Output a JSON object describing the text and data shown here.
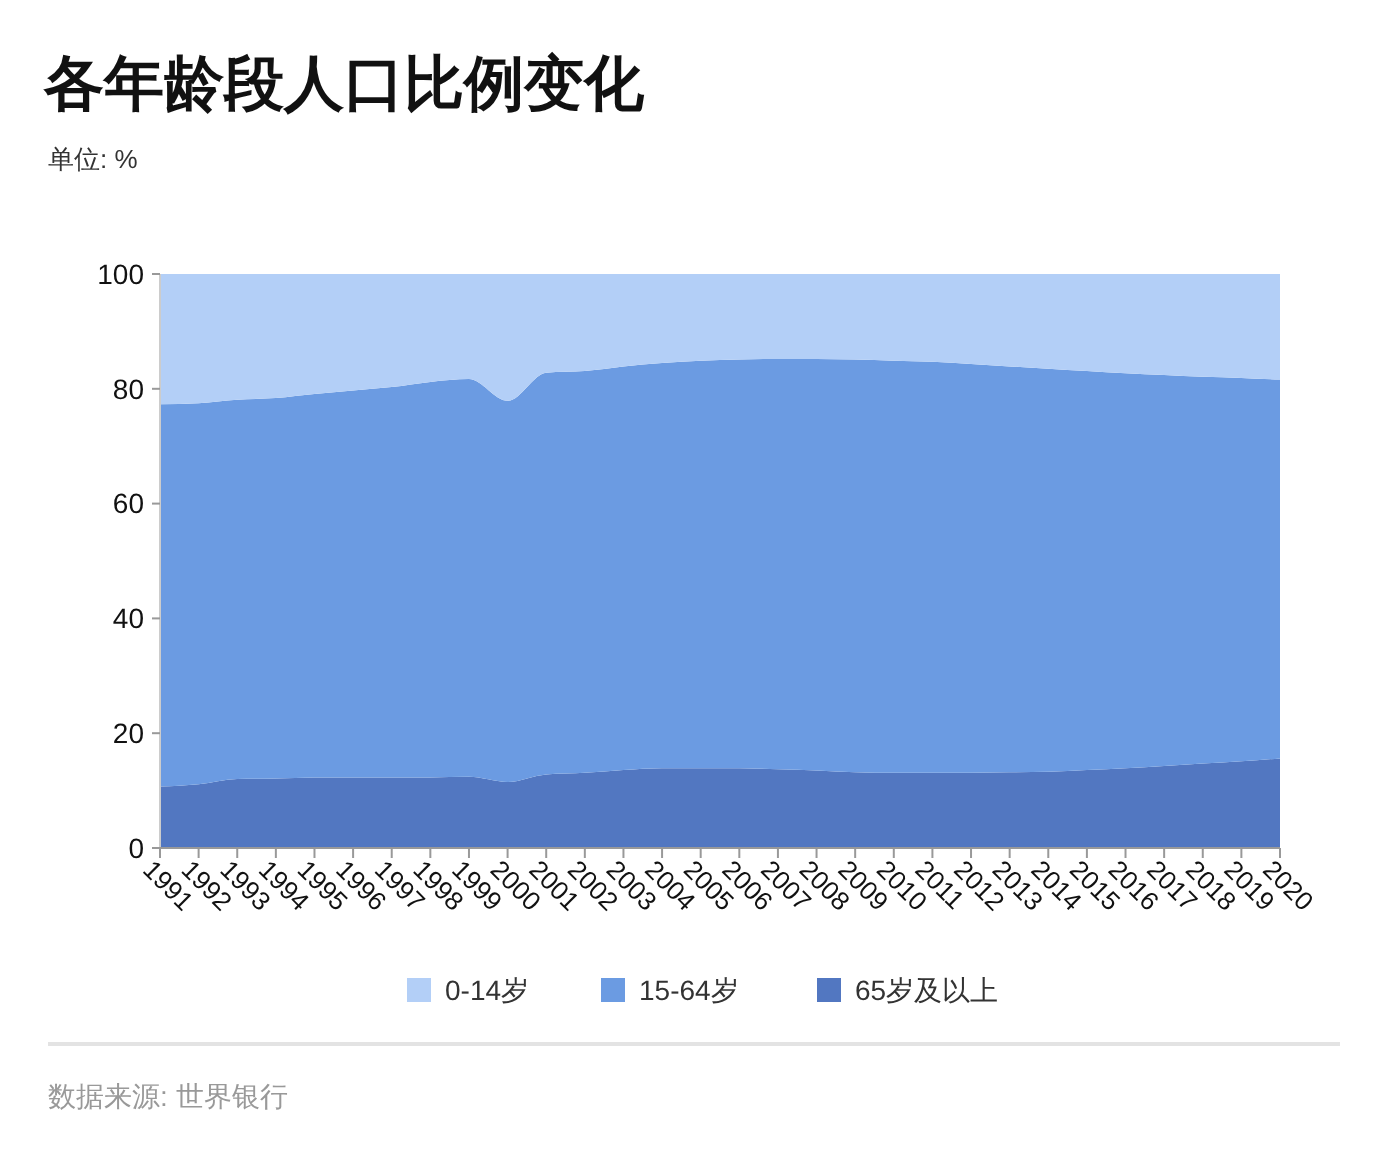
{
  "chart_data": {
    "type": "area",
    "title": "各年龄段人口比例变化",
    "subtitle": "单位: %",
    "annotations": [
      "数据来源: 世界银行"
    ],
    "categories": [
      "1991",
      "1992",
      "1993",
      "1994",
      "1995",
      "1996",
      "1997",
      "1998",
      "1999",
      "2000",
      "2001",
      "2002",
      "2003",
      "2004",
      "2005",
      "2006",
      "2007",
      "2008",
      "2009",
      "2010",
      "2011",
      "2012",
      "2013",
      "2014",
      "2015",
      "2016",
      "2017",
      "2018",
      "2019",
      "2020"
    ],
    "stacked": true,
    "ylim": [
      0,
      100
    ],
    "yticks": [
      0,
      20,
      40,
      60,
      80,
      100
    ],
    "grid": false,
    "legend": "bottom",
    "series": [
      {
        "name": "65岁及以上",
        "color": "#5277c1",
        "values": [
          10.7,
          11.1,
          12.0,
          12.1,
          12.3,
          12.3,
          12.3,
          12.3,
          12.4,
          11.5,
          12.8,
          13.1,
          13.6,
          13.9,
          13.9,
          13.9,
          13.7,
          13.5,
          13.2,
          13.1,
          13.1,
          13.1,
          13.2,
          13.3,
          13.6,
          13.9,
          14.3,
          14.7,
          15.1,
          15.6
        ]
      },
      {
        "name": "15-64岁",
        "color": "#6b9be2",
        "values": [
          66.6,
          66.4,
          66.1,
          66.3,
          66.8,
          67.4,
          68.0,
          68.9,
          69.3,
          66.4,
          70.0,
          70.0,
          70.3,
          70.6,
          71.0,
          71.2,
          71.5,
          71.7,
          71.9,
          71.8,
          71.6,
          71.2,
          70.7,
          70.2,
          69.5,
          68.8,
          68.1,
          67.4,
          66.8,
          66.0
        ]
      },
      {
        "name": "0-14岁",
        "color": "#b3cff7",
        "values": [
          22.7,
          22.5,
          21.9,
          21.6,
          20.9,
          20.3,
          19.7,
          18.8,
          18.3,
          22.1,
          17.2,
          16.9,
          16.1,
          15.5,
          15.1,
          14.9,
          14.8,
          14.8,
          14.9,
          15.1,
          15.3,
          15.7,
          16.1,
          16.5,
          16.9,
          17.3,
          17.6,
          17.9,
          18.1,
          18.4
        ]
      }
    ]
  }
}
